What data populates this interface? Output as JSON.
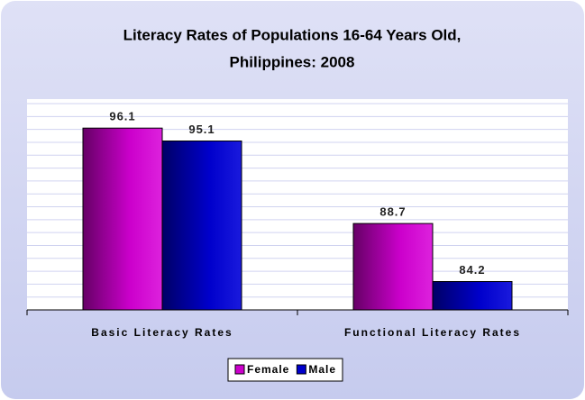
{
  "chart_data": {
    "type": "bar",
    "title": [
      "Literacy Rates of Populations 16-64 Years Old,",
      "Philippines: 2008"
    ],
    "categories": [
      "Basic Literacy Rates",
      "Functional Literacy Rates"
    ],
    "series": [
      {
        "name": "Female",
        "color": "#cc00cc",
        "values": [
          96.1,
          88.7
        ]
      },
      {
        "name": "Male",
        "color": "#0000cc",
        "values": [
          95.1,
          84.2
        ]
      }
    ],
    "ylim": [
      82,
      98
    ],
    "yticks": [
      82,
      83,
      84,
      85,
      86,
      87,
      88,
      89,
      90,
      91,
      92,
      93,
      94,
      95,
      96,
      97,
      98
    ],
    "grid": true,
    "legend": "bottom"
  }
}
